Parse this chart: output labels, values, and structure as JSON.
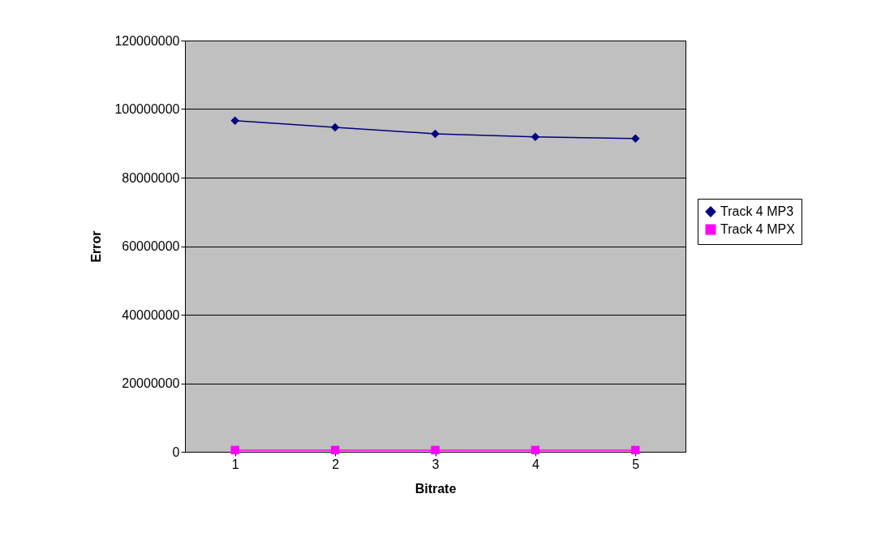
{
  "chart_data": {
    "type": "line",
    "xlabel": "Bitrate",
    "ylabel": "Error",
    "categories": [
      "1",
      "2",
      "3",
      "4",
      "5"
    ],
    "series": [
      {
        "name": "Track 4 MP3",
        "color": "#000080",
        "marker": "diamond",
        "values": [
          96600000,
          94700000,
          92800000,
          91900000,
          91400000
        ]
      },
      {
        "name": "Track 4 MPX",
        "color": "#ff00ff",
        "marker": "square",
        "values": [
          500000,
          500000,
          500000,
          500000,
          500000
        ]
      }
    ],
    "ylim": [
      0,
      120000000
    ],
    "yticks": [
      0,
      20000000,
      40000000,
      60000000,
      80000000,
      100000000,
      120000000
    ],
    "grid": "y",
    "legend": "right",
    "line_style": "solid"
  }
}
